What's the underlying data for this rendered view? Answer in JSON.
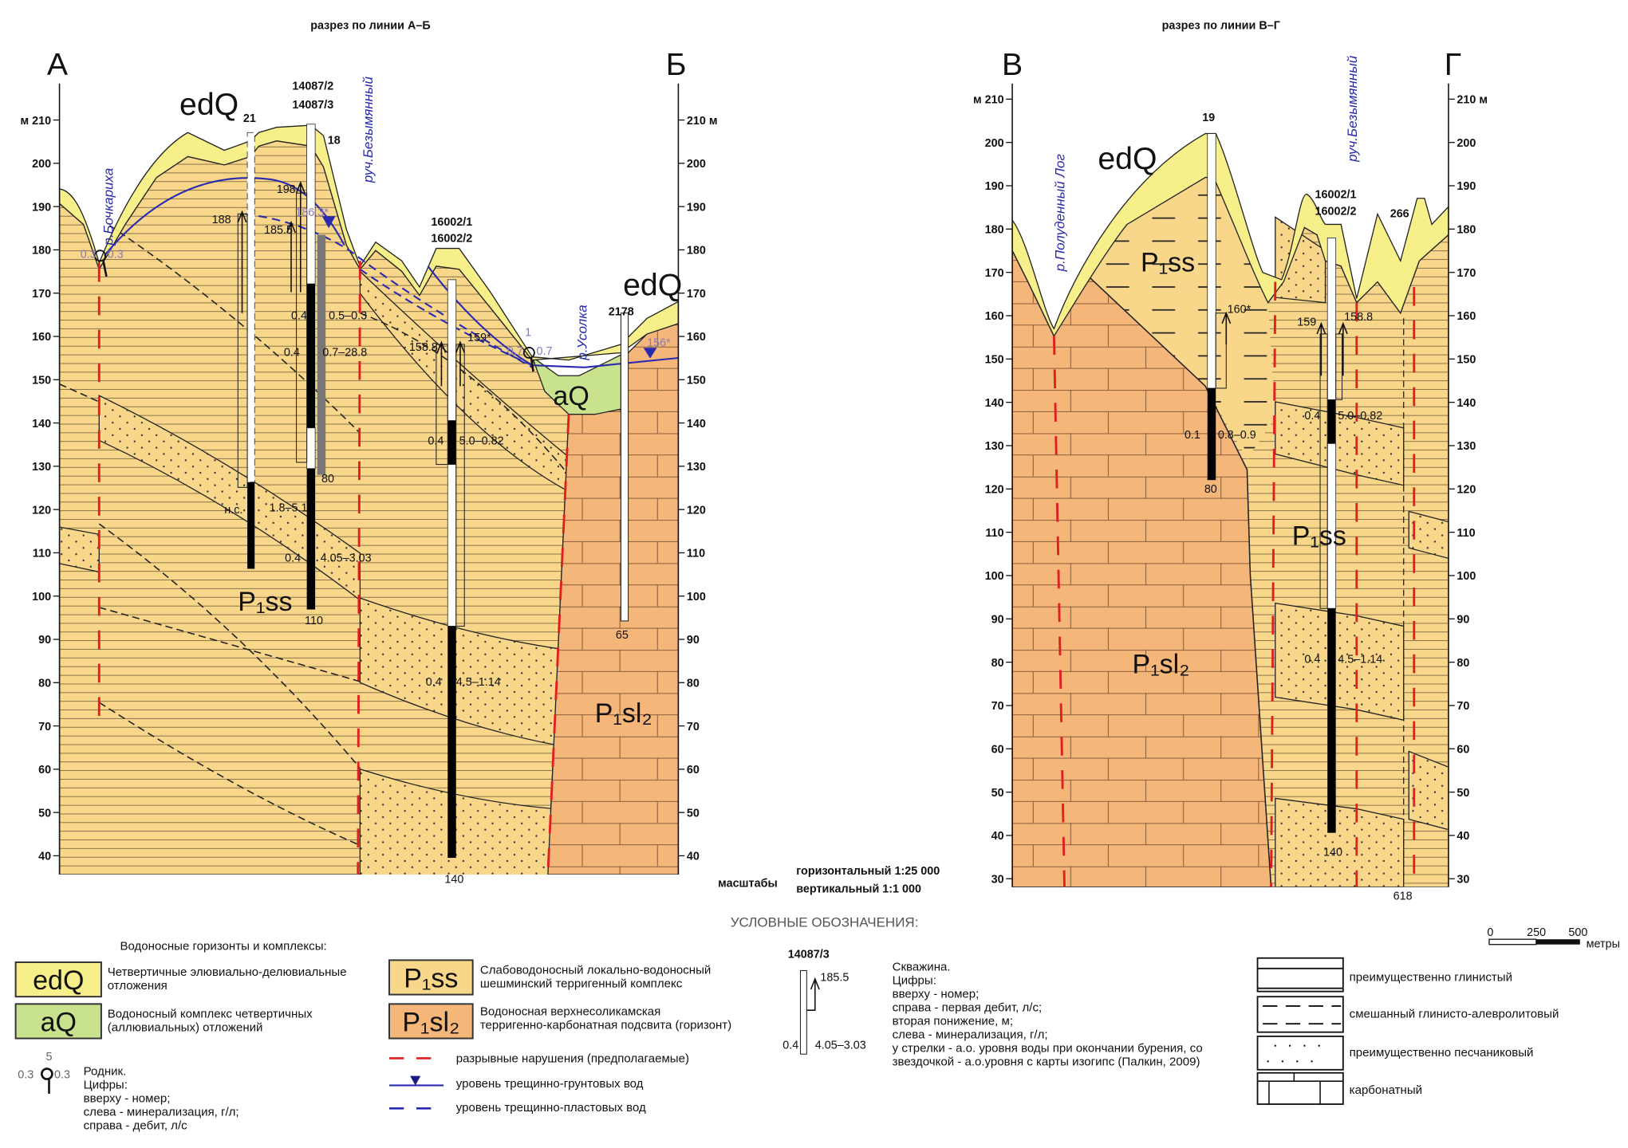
{
  "colors": {
    "edQ": "#f7ef8a",
    "aQ": "#c9e28e",
    "P1ss": "#f8d68a",
    "P1sl2": "#f5b67a",
    "fault": "#e02020",
    "groundwater": "#2a2ab0"
  },
  "left_section": {
    "title": "разрез по линии А–Б",
    "start_letter": "А",
    "end_letter": "Б",
    "axis_unit": "м",
    "axis_ticks": [
      210,
      200,
      190,
      180,
      170,
      160,
      150,
      140,
      130,
      120,
      110,
      100,
      90,
      80,
      70,
      60,
      50,
      40
    ],
    "rivers": [
      "р.Бочкариха",
      "руч.Безымянный",
      "р.Усолка"
    ],
    "units": {
      "edQ_1": "edQ",
      "edQ_2": "edQ",
      "aQ": "aQ",
      "P1ss": "P₁ss",
      "P1sl2": "P₁sl₂"
    },
    "wells": {
      "w21": "21",
      "w14087_2": "14087/2",
      "w14087_3": "14087/3",
      "w18": "18",
      "w16002_1": "16002/1",
      "w16002_2": "16002/2",
      "w2178": "2178"
    },
    "values": {
      "v198": "198",
      "v188": "188",
      "v185_5": "185.5",
      "v186_3": "186.3*",
      "m1": "0.4",
      "d1": "0.5–0.3",
      "m2": "0.4",
      "d2": "0.7–28.8",
      "depth80": "80",
      "ns": "н.с.",
      "d3": "1.8–5.1",
      "m4": "0.4",
      "d4": "4.05–3.03",
      "depth110": "110",
      "v158_8": "158.8",
      "v159": "159*",
      "m5": "0.4",
      "d5": "5.0–0.82",
      "m6": "0.4",
      "d6": "4.5–1.14",
      "depth140": "140",
      "depth65": "65",
      "v156": "156*",
      "spring1_left": "0.3",
      "spring1_right": "0.3",
      "spring2_num": "1",
      "spring2_left": "0.7",
      "spring2_right": "0.7"
    }
  },
  "right_section": {
    "title": "разрез по линии В–Г",
    "start_letter": "В",
    "end_letter": "Г",
    "axis_unit": "м",
    "axis_ticks": [
      210,
      200,
      190,
      180,
      170,
      160,
      150,
      140,
      130,
      120,
      110,
      100,
      90,
      80,
      70,
      60,
      50,
      40,
      30
    ],
    "rivers": [
      "р.Полуденный Лог",
      "руч.Безымянный"
    ],
    "units": {
      "edQ": "edQ",
      "P1ss_1": "P₁ss",
      "P1ss_2": "P₁ss",
      "P1sl2": "P₁sl₂"
    },
    "wells": {
      "w19": "19",
      "w16002_1": "16002/1",
      "w16002_2": "16002/2",
      "w266": "266"
    },
    "values": {
      "v160": "160*",
      "v159": "159",
      "v158_8": "158.8",
      "m1": "0.1",
      "d1": "0.8–0.9",
      "m2": "0.4",
      "d2": "5.0–0.82",
      "depth80": "80",
      "m3": "0.4",
      "d3": "4.5–1.14",
      "depth140": "140",
      "depth618": "618"
    }
  },
  "scale": {
    "label": "масштабы",
    "horizontal": "горизонтальный 1:25 000",
    "vertical": "вертикальный 1:1 000",
    "bar_ticks": [
      "0",
      "250",
      "500"
    ],
    "bar_unit": "метры"
  },
  "legend": {
    "title": "УСЛОВНЫЕ ОБОЗНАЧЕНИЯ:",
    "aquifers_title": "Водоносные горизонты и комплексы:",
    "edQ": {
      "code": "edQ",
      "lines": [
        "Четвертичные элювиально-делювиальные",
        "отложения"
      ]
    },
    "aQ": {
      "code": "aQ",
      "lines": [
        "Водоносный комплекс четвертичных",
        "(аллювиальных) отложений"
      ]
    },
    "P1ss": {
      "code": "P₁ss",
      "lines": [
        "Слабоводоносный локально-водоносный",
        "шешминский терригенный комплекс"
      ]
    },
    "P1sl2": {
      "code": "P₁sl₂",
      "lines": [
        "Водоносная верхнесоликамская",
        "терригенно-карбонатная подсвита (горизонт)"
      ]
    },
    "spring": {
      "num": "5",
      "left": "0.3",
      "right": "0.3",
      "lines": [
        "Родник.",
        "Цифры:",
        "вверху - номер;",
        "слева - минерализация, г/л;",
        "справа - дебит, л/с"
      ]
    },
    "faults": "разрывные нарушения (предполагаемые)",
    "groundwater_level": "уровень трещинно-грунтовых вод",
    "stratal_level": "уровень трещинно-пластовых вод",
    "well": {
      "num": "14087/3",
      "level": "185.5",
      "left": "0.4",
      "right": "4.05–3.03",
      "lines": [
        "Скважина.",
        "Цифры:",
        "вверху - номер;",
        "справа - первая дебит, л/с;",
        "вторая понижение, м;",
        "слева - минерализация, г/л;",
        "у стрелки - а.о. уровня воды при окончании бурения, со",
        "звездочкой - а.о.уровня с карты изогипс (Палкин, 2009)"
      ]
    },
    "lithology": [
      "преимущественно глинистый",
      "смешанный глинисто-алевролитовый",
      "преимущественно песчаниковый",
      "карбонатный"
    ]
  }
}
